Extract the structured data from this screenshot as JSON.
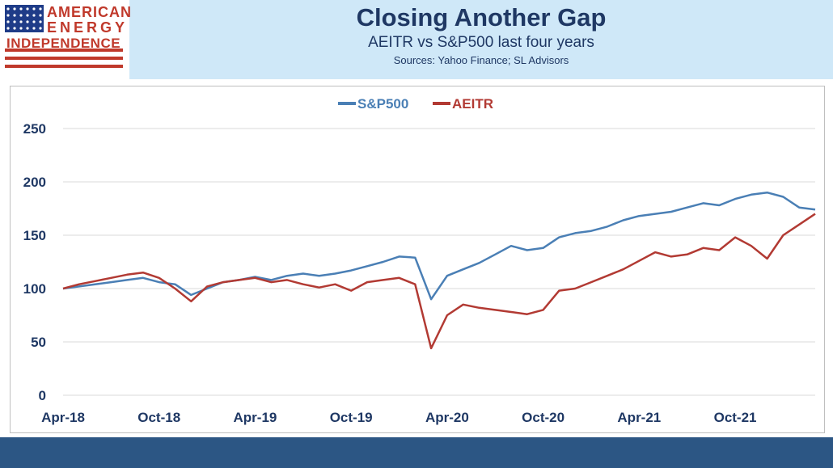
{
  "logo": {
    "line1": "AMERICAN",
    "line2": "ENERGY",
    "line3": "INDEPENDENCE",
    "flag_red": "#c0392b",
    "flag_blue": "#1f3c88"
  },
  "header": {
    "title": "Closing Another Gap",
    "subtitle": "AEITR vs S&P500 last four years",
    "sources": "Sources: Yahoo Finance; SL Advisors"
  },
  "colors": {
    "header_bg": "#cfe8f8",
    "title": "#1f3864",
    "footer": "#2c5684",
    "sp500": "#4a7fb5",
    "aeitr": "#b23a33"
  },
  "chart_data": {
    "type": "line",
    "title": "",
    "xlabel": "",
    "ylabel": "",
    "ylim": [
      0,
      250
    ],
    "yticks": [
      "0",
      "50",
      "100",
      "150",
      "200",
      "250"
    ],
    "xticks": [
      "Apr-18",
      "Oct-18",
      "Apr-19",
      "Oct-19",
      "Apr-20",
      "Oct-20",
      "Apr-21",
      "Oct-21"
    ],
    "x": [
      "Apr-18",
      "May-18",
      "Jun-18",
      "Jul-18",
      "Aug-18",
      "Sep-18",
      "Oct-18",
      "Nov-18",
      "Dec-18",
      "Jan-19",
      "Feb-19",
      "Mar-19",
      "Apr-19",
      "May-19",
      "Jun-19",
      "Jul-19",
      "Aug-19",
      "Sep-19",
      "Oct-19",
      "Nov-19",
      "Dec-19",
      "Jan-20",
      "Feb-20",
      "Mar-20",
      "Apr-20",
      "May-20",
      "Jun-20",
      "Jul-20",
      "Aug-20",
      "Sep-20",
      "Oct-20",
      "Nov-20",
      "Dec-20",
      "Jan-21",
      "Feb-21",
      "Mar-21",
      "Apr-21",
      "May-21",
      "Jun-21",
      "Jul-21",
      "Aug-21",
      "Sep-21",
      "Oct-21",
      "Nov-21",
      "Dec-21",
      "Jan-22",
      "Feb-22",
      "Mar-22"
    ],
    "grid": true,
    "legend_position": "top-center",
    "series": [
      {
        "name": "S&P500",
        "values": [
          100,
          102,
          104,
          106,
          108,
          110,
          106,
          104,
          94,
          100,
          106,
          108,
          111,
          108,
          112,
          114,
          112,
          114,
          117,
          121,
          125,
          130,
          129,
          90,
          112,
          118,
          124,
          132,
          140,
          136,
          138,
          148,
          152,
          154,
          158,
          164,
          168,
          170,
          172,
          176,
          180,
          178,
          184,
          188,
          190,
          186,
          176,
          174
        ]
      },
      {
        "name": "AEITR",
        "values": [
          100,
          104,
          107,
          110,
          113,
          115,
          110,
          100,
          88,
          102,
          106,
          108,
          110,
          106,
          108,
          104,
          101,
          104,
          98,
          106,
          108,
          110,
          104,
          44,
          75,
          85,
          82,
          80,
          78,
          76,
          80,
          98,
          100,
          106,
          112,
          118,
          126,
          134,
          130,
          132,
          138,
          136,
          148,
          140,
          128,
          150,
          160,
          170
        ]
      }
    ]
  }
}
